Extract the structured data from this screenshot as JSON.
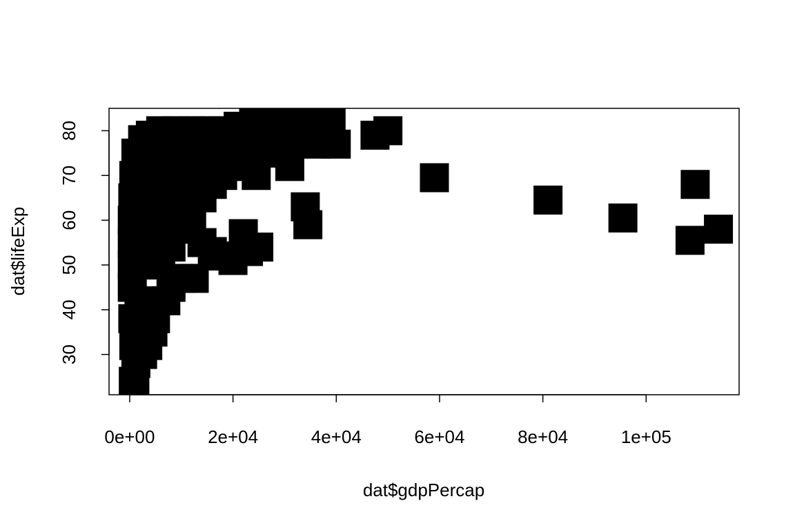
{
  "chart_data": {
    "type": "scatter",
    "title": "",
    "xlabel": "dat$gdpPercap",
    "ylabel": "dat$lifeExp",
    "xlim": [
      -4000,
      118000
    ],
    "ylim": [
      21,
      85
    ],
    "xticks": [
      0,
      20000,
      40000,
      60000,
      80000,
      100000
    ],
    "xtick_labels": [
      "0e+00",
      "2e+04",
      "4e+04",
      "6e+04",
      "8e+04",
      "1e+05"
    ],
    "yticks": [
      30,
      40,
      50,
      60,
      70,
      80
    ],
    "ytick_labels": [
      "30",
      "40",
      "50",
      "60",
      "70",
      "80"
    ],
    "grid": false,
    "legend": "none",
    "marker": "filled-square",
    "marker_color": "#000000",
    "series": [
      {
        "points": [
          {
            "x": 700,
            "y": 24
          },
          {
            "x": 1000,
            "y": 23
          },
          {
            "x": 1200,
            "y": 28
          },
          {
            "x": 800,
            "y": 32
          },
          {
            "x": 1500,
            "y": 34
          },
          {
            "x": 2500,
            "y": 30
          },
          {
            "x": 3500,
            "y": 32
          },
          {
            "x": 4500,
            "y": 35
          },
          {
            "x": 600,
            "y": 38
          },
          {
            "x": 1800,
            "y": 40
          },
          {
            "x": 3000,
            "y": 42
          },
          {
            "x": 5000,
            "y": 38
          },
          {
            "x": 7000,
            "y": 42
          },
          {
            "x": 8000,
            "y": 45
          },
          {
            "x": 10000,
            "y": 47
          },
          {
            "x": 12500,
            "y": 47
          },
          {
            "x": 500,
            "y": 45
          },
          {
            "x": 500,
            "y": 50
          },
          {
            "x": 500,
            "y": 55
          },
          {
            "x": 500,
            "y": 60
          },
          {
            "x": 600,
            "y": 65
          },
          {
            "x": 800,
            "y": 70
          },
          {
            "x": 1200,
            "y": 75
          },
          {
            "x": 2500,
            "y": 78
          },
          {
            "x": 4000,
            "y": 79
          },
          {
            "x": 6000,
            "y": 80
          },
          {
            "x": 9000,
            "y": 80
          },
          {
            "x": 12000,
            "y": 80
          },
          {
            "x": 15000,
            "y": 80
          },
          {
            "x": 18000,
            "y": 80
          },
          {
            "x": 21000,
            "y": 81
          },
          {
            "x": 24000,
            "y": 82
          },
          {
            "x": 27000,
            "y": 82
          },
          {
            "x": 30000,
            "y": 83
          },
          {
            "x": 33000,
            "y": 83
          },
          {
            "x": 36000,
            "y": 83
          },
          {
            "x": 39000,
            "y": 82
          },
          {
            "x": 28000,
            "y": 79
          },
          {
            "x": 32000,
            "y": 78
          },
          {
            "x": 36000,
            "y": 77
          },
          {
            "x": 40000,
            "y": 77
          },
          {
            "x": 2000,
            "y": 50
          },
          {
            "x": 2000,
            "y": 58
          },
          {
            "x": 2000,
            "y": 66
          },
          {
            "x": 3000,
            "y": 72
          },
          {
            "x": 4000,
            "y": 55
          },
          {
            "x": 4000,
            "y": 63
          },
          {
            "x": 4000,
            "y": 70
          },
          {
            "x": 6000,
            "y": 50
          },
          {
            "x": 6000,
            "y": 58
          },
          {
            "x": 6000,
            "y": 65
          },
          {
            "x": 6000,
            "y": 73
          },
          {
            "x": 8000,
            "y": 54
          },
          {
            "x": 8000,
            "y": 62
          },
          {
            "x": 8000,
            "y": 70
          },
          {
            "x": 8000,
            "y": 76
          },
          {
            "x": 10000,
            "y": 58
          },
          {
            "x": 10000,
            "y": 66
          },
          {
            "x": 10000,
            "y": 72
          },
          {
            "x": 12000,
            "y": 60
          },
          {
            "x": 12000,
            "y": 68
          },
          {
            "x": 12000,
            "y": 74
          },
          {
            "x": 14000,
            "y": 65
          },
          {
            "x": 14000,
            "y": 72
          },
          {
            "x": 14000,
            "y": 77
          },
          {
            "x": 16000,
            "y": 68
          },
          {
            "x": 16000,
            "y": 74
          },
          {
            "x": 18000,
            "y": 70
          },
          {
            "x": 18000,
            "y": 76
          },
          {
            "x": 20000,
            "y": 72
          },
          {
            "x": 20000,
            "y": 76
          },
          {
            "x": 22000,
            "y": 74
          },
          {
            "x": 24000,
            "y": 78
          },
          {
            "x": 24500,
            "y": 70
          },
          {
            "x": 27000,
            "y": 75
          },
          {
            "x": 30000,
            "y": 76
          },
          {
            "x": 31000,
            "y": 72
          },
          {
            "x": 14000,
            "y": 55
          },
          {
            "x": 16000,
            "y": 53
          },
          {
            "x": 18000,
            "y": 52
          },
          {
            "x": 20000,
            "y": 51
          },
          {
            "x": 22000,
            "y": 57
          },
          {
            "x": 23000,
            "y": 53
          },
          {
            "x": 25000,
            "y": 54
          },
          {
            "x": 34000,
            "y": 63
          },
          {
            "x": 34500,
            "y": 59
          },
          {
            "x": 47500,
            "y": 79
          },
          {
            "x": 50000,
            "y": 80
          },
          {
            "x": 59000,
            "y": 69.5
          },
          {
            "x": 81000,
            "y": 64.5
          },
          {
            "x": 95500,
            "y": 60.5
          },
          {
            "x": 109500,
            "y": 68
          },
          {
            "x": 108500,
            "y": 55.5
          },
          {
            "x": 114000,
            "y": 58
          }
        ]
      }
    ]
  }
}
